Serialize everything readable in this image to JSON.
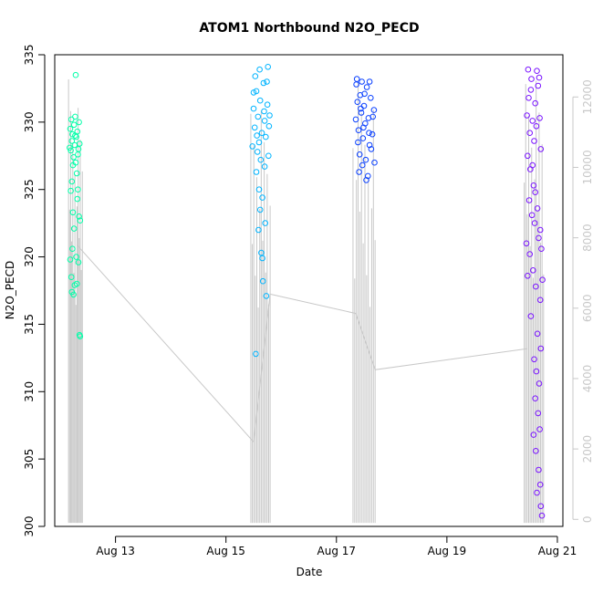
{
  "chart_data": {
    "type": "scatter",
    "title": "ATOM1 Northbound N2O_PECD",
    "xlabel": "Date",
    "ylabel": "N2O_PECD",
    "x_ticks": [
      {
        "day": 13,
        "label": "Aug 13"
      },
      {
        "day": 15,
        "label": "Aug 15"
      },
      {
        "day": 17,
        "label": "Aug 17"
      },
      {
        "day": 19,
        "label": "Aug 19"
      },
      {
        "day": 21,
        "label": "Aug 21"
      }
    ],
    "xlim_days": [
      11.9,
      21.1
    ],
    "ylim": [
      300,
      335
    ],
    "y_ticks": [
      300,
      305,
      310,
      315,
      320,
      325,
      330,
      335
    ],
    "y2lim": [
      -200,
      13200
    ],
    "y2_ticks": [
      0,
      2000,
      4000,
      6000,
      8000,
      10000,
      12000
    ],
    "y2_color": "#c8c8c8",
    "secondary_line": {
      "color": "#c8c8c8",
      "description_points": [
        {
          "day": 12.3,
          "y2": 7800
        },
        {
          "day": 15.5,
          "y2": 2200
        },
        {
          "day": 15.8,
          "y2": 6400
        },
        {
          "day": 17.35,
          "y2": 5850
        },
        {
          "day": 17.7,
          "y2": 4250
        },
        {
          "day": 20.45,
          "y2": 4850
        }
      ]
    },
    "series": [
      {
        "color": "#00ffa8",
        "day_range": [
          12.15,
          12.4
        ],
        "points": [
          [
            12.17,
            328.1
          ],
          [
            12.18,
            329.5
          ],
          [
            12.19,
            327.9
          ],
          [
            12.2,
            330.2
          ],
          [
            12.21,
            328.6
          ],
          [
            12.22,
            329.1
          ],
          [
            12.23,
            326.8
          ],
          [
            12.24,
            327.4
          ],
          [
            12.25,
            329.8
          ],
          [
            12.26,
            328.3
          ],
          [
            12.27,
            330.4
          ],
          [
            12.28,
            327.0
          ],
          [
            12.29,
            328.9
          ],
          [
            12.3,
            326.2
          ],
          [
            12.31,
            329.3
          ],
          [
            12.32,
            327.6
          ],
          [
            12.33,
            328.0
          ],
          [
            12.34,
            330.0
          ],
          [
            12.35,
            328.4
          ],
          [
            12.19,
            324.9
          ],
          [
            12.21,
            325.6
          ],
          [
            12.31,
            324.3
          ],
          [
            12.34,
            323.0
          ],
          [
            12.36,
            322.7
          ],
          [
            12.25,
            322.1
          ],
          [
            12.22,
            320.6
          ],
          [
            12.29,
            320.0
          ],
          [
            12.33,
            319.6
          ],
          [
            12.18,
            319.8
          ],
          [
            12.2,
            318.5
          ],
          [
            12.26,
            317.9
          ],
          [
            12.3,
            318.0
          ],
          [
            12.24,
            317.2
          ],
          [
            12.36,
            314.1
          ],
          [
            12.35,
            314.2
          ],
          [
            12.28,
            333.5
          ],
          [
            12.27,
            329.0
          ],
          [
            12.32,
            325.0
          ],
          [
            12.23,
            323.3
          ],
          [
            12.21,
            317.4
          ]
        ]
      },
      {
        "color": "#00b4ff",
        "day_range": [
          15.45,
          15.8
        ],
        "points": [
          [
            15.5,
            331.0
          ],
          [
            15.52,
            329.6
          ],
          [
            15.55,
            332.3
          ],
          [
            15.58,
            330.4
          ],
          [
            15.6,
            328.5
          ],
          [
            15.62,
            331.6
          ],
          [
            15.65,
            329.2
          ],
          [
            15.68,
            332.9
          ],
          [
            15.7,
            330.1
          ],
          [
            15.72,
            328.9
          ],
          [
            15.75,
            331.3
          ],
          [
            15.78,
            329.7
          ],
          [
            15.53,
            333.4
          ],
          [
            15.57,
            327.8
          ],
          [
            15.63,
            327.2
          ],
          [
            15.69,
            330.8
          ],
          [
            15.74,
            333.0
          ],
          [
            15.76,
            334.1
          ],
          [
            15.5,
            332.2
          ],
          [
            15.55,
            326.3
          ],
          [
            15.6,
            325.0
          ],
          [
            15.66,
            324.4
          ],
          [
            15.71,
            322.5
          ],
          [
            15.59,
            322.0
          ],
          [
            15.64,
            320.3
          ],
          [
            15.67,
            318.2
          ],
          [
            15.73,
            317.1
          ],
          [
            15.54,
            312.8
          ],
          [
            15.61,
            333.9
          ],
          [
            15.79,
            330.5
          ],
          [
            15.56,
            329.0
          ],
          [
            15.7,
            326.7
          ],
          [
            15.48,
            328.2
          ],
          [
            15.77,
            327.5
          ],
          [
            15.62,
            323.5
          ],
          [
            15.66,
            319.9
          ]
        ]
      },
      {
        "color": "#0a40ff",
        "day_range": [
          17.3,
          17.7
        ],
        "points": [
          [
            17.35,
            330.2
          ],
          [
            17.38,
            331.5
          ],
          [
            17.4,
            329.4
          ],
          [
            17.43,
            332.0
          ],
          [
            17.45,
            330.7
          ],
          [
            17.48,
            328.8
          ],
          [
            17.5,
            331.2
          ],
          [
            17.52,
            329.9
          ],
          [
            17.55,
            332.6
          ],
          [
            17.58,
            330.3
          ],
          [
            17.6,
            328.3
          ],
          [
            17.62,
            331.8
          ],
          [
            17.65,
            329.1
          ],
          [
            17.68,
            330.9
          ],
          [
            17.37,
            333.2
          ],
          [
            17.42,
            327.6
          ],
          [
            17.47,
            326.8
          ],
          [
            17.53,
            327.2
          ],
          [
            17.57,
            326.0
          ],
          [
            17.6,
            333.0
          ],
          [
            17.36,
            332.8
          ],
          [
            17.44,
            331.0
          ],
          [
            17.49,
            329.6
          ],
          [
            17.63,
            328.0
          ],
          [
            17.66,
            330.4
          ],
          [
            17.39,
            328.5
          ],
          [
            17.51,
            332.1
          ],
          [
            17.54,
            325.7
          ],
          [
            17.41,
            326.3
          ],
          [
            17.59,
            329.2
          ],
          [
            17.46,
            333.0
          ],
          [
            17.69,
            327.0
          ]
        ]
      },
      {
        "color": "#7a14ff",
        "day_range": [
          20.4,
          20.75
        ],
        "points": [
          [
            20.45,
            330.5
          ],
          [
            20.48,
            331.8
          ],
          [
            20.5,
            329.2
          ],
          [
            20.52,
            332.4
          ],
          [
            20.55,
            330.1
          ],
          [
            20.58,
            328.6
          ],
          [
            20.6,
            331.4
          ],
          [
            20.62,
            329.7
          ],
          [
            20.65,
            332.7
          ],
          [
            20.68,
            330.3
          ],
          [
            20.7,
            328.0
          ],
          [
            20.47,
            333.9
          ],
          [
            20.53,
            333.2
          ],
          [
            20.63,
            333.8
          ],
          [
            20.67,
            333.3
          ],
          [
            20.46,
            327.5
          ],
          [
            20.51,
            326.5
          ],
          [
            20.57,
            325.3
          ],
          [
            20.49,
            324.2
          ],
          [
            20.54,
            323.1
          ],
          [
            20.59,
            322.5
          ],
          [
            20.66,
            321.4
          ],
          [
            20.5,
            320.2
          ],
          [
            20.56,
            319.0
          ],
          [
            20.61,
            317.8
          ],
          [
            20.69,
            316.8
          ],
          [
            20.52,
            315.6
          ],
          [
            20.64,
            314.3
          ],
          [
            20.7,
            313.2
          ],
          [
            20.58,
            312.4
          ],
          [
            20.62,
            311.5
          ],
          [
            20.67,
            310.6
          ],
          [
            20.6,
            309.5
          ],
          [
            20.65,
            308.4
          ],
          [
            20.68,
            307.2
          ],
          [
            20.57,
            306.8
          ],
          [
            20.61,
            305.6
          ],
          [
            20.66,
            304.2
          ],
          [
            20.69,
            303.1
          ],
          [
            20.63,
            302.5
          ],
          [
            20.72,
            300.8
          ],
          [
            20.7,
            301.5
          ],
          [
            20.71,
            320.6
          ],
          [
            20.73,
            318.3
          ],
          [
            20.44,
            321.0
          ],
          [
            20.46,
            318.6
          ],
          [
            20.55,
            326.8
          ],
          [
            20.6,
            324.8
          ],
          [
            20.64,
            323.6
          ],
          [
            20.69,
            322.0
          ]
        ]
      }
    ]
  }
}
